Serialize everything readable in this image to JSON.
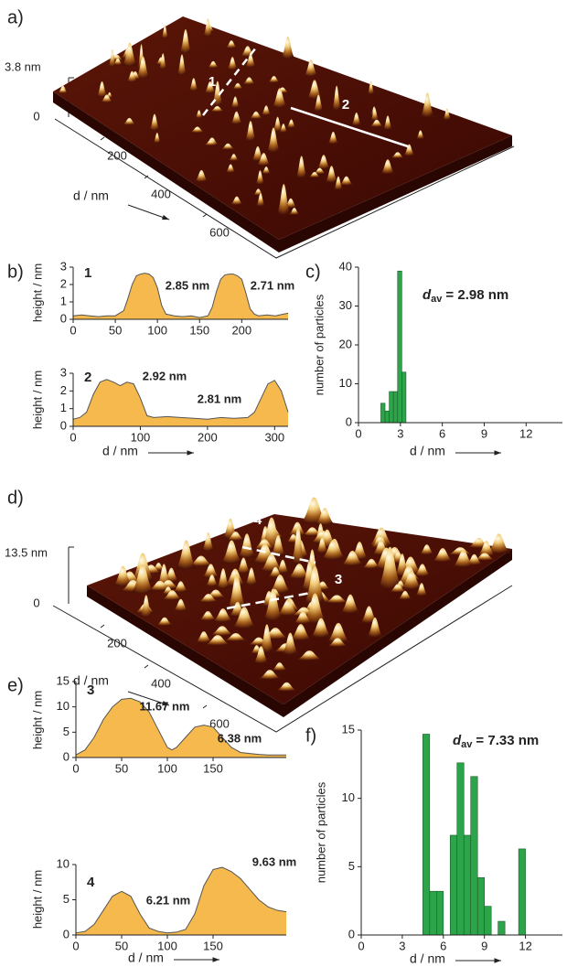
{
  "images": [
    {
      "panel": "a)",
      "zlabel": "3.8 nm",
      "ticks": [
        0,
        200,
        400,
        600
      ],
      "xlabel": "d / nm",
      "lines": [
        "1",
        "2"
      ]
    },
    {
      "panel": "d)",
      "zlabel": "13.5 nm",
      "ticks": [
        0,
        200,
        400,
        600
      ],
      "xlabel": "d / nm",
      "lines": [
        "4",
        "3"
      ]
    }
  ],
  "chart_data": [
    {
      "type": "area",
      "panel": "b)",
      "label": "1",
      "annotations": [
        "2.85 nm",
        "2.71 nm"
      ],
      "ylabel": "height / nm",
      "color": "#f5b94e",
      "x": [
        0,
        10,
        20,
        30,
        40,
        50,
        60,
        65,
        70,
        75,
        80,
        85,
        90,
        95,
        100,
        105,
        110,
        120,
        130,
        140,
        150,
        160,
        165,
        170,
        175,
        180,
        185,
        190,
        195,
        200,
        205,
        210,
        215,
        220,
        230,
        240,
        250,
        255
      ],
      "values": [
        0.2,
        0.25,
        0.2,
        0.15,
        0.2,
        0.2,
        0.5,
        1.2,
        2.0,
        2.5,
        2.6,
        2.65,
        2.6,
        2.4,
        1.8,
        0.8,
        0.3,
        0.2,
        0.15,
        0.2,
        0.1,
        0.2,
        0.7,
        1.6,
        2.3,
        2.55,
        2.6,
        2.6,
        2.5,
        2.3,
        1.5,
        0.6,
        0.3,
        0.2,
        0.25,
        0.2,
        0.3,
        0.35
      ],
      "xlim": [
        0,
        255
      ],
      "xticks": [
        0,
        50,
        100,
        150,
        200
      ],
      "ylim": [
        0,
        3
      ],
      "yticks": [
        0,
        1,
        2,
        3
      ]
    },
    {
      "type": "area",
      "label": "2",
      "annotations": [
        "2.92 nm",
        "2.81 nm"
      ],
      "ylabel": "height / nm",
      "xlabel": "d / nm",
      "color": "#f5b94e",
      "x": [
        0,
        10,
        20,
        30,
        40,
        50,
        60,
        70,
        80,
        90,
        100,
        110,
        120,
        140,
        160,
        180,
        200,
        220,
        240,
        260,
        270,
        280,
        290,
        300,
        310,
        320
      ],
      "values": [
        0.4,
        0.5,
        0.8,
        1.8,
        2.5,
        2.65,
        2.5,
        2.3,
        2.5,
        2.4,
        1.6,
        0.6,
        0.5,
        0.55,
        0.5,
        0.45,
        0.4,
        0.5,
        0.45,
        0.5,
        0.8,
        1.6,
        2.4,
        2.6,
        2.0,
        0.8
      ],
      "xlim": [
        0,
        320
      ],
      "xticks": [
        0,
        100,
        200,
        300
      ],
      "ylim": [
        0,
        3
      ],
      "yticks": [
        0,
        1,
        2,
        3
      ]
    },
    {
      "type": "histogram",
      "panel": "c)",
      "annotation": {
        "symbol": "d",
        "subscript": "av",
        "text": "= 2.98 nm"
      },
      "ylabel": "number of particles",
      "xlabel": "d / nm",
      "color": "#2ca54a",
      "bins": [
        1.6,
        1.9,
        2.2,
        2.5,
        2.8,
        3.1,
        3.4
      ],
      "values": [
        5,
        3,
        8,
        8,
        39,
        13
      ],
      "xlim": [
        0,
        14.6
      ],
      "xticks": [
        0,
        3,
        6,
        9,
        12
      ],
      "ylim": [
        0,
        40
      ],
      "yticks": [
        0,
        10,
        20,
        30,
        40
      ]
    },
    {
      "type": "area",
      "panel": "e)",
      "label": "3",
      "annotations": [
        "11.67 nm",
        "6.38 nm"
      ],
      "ylabel": "height / nm",
      "color": "#f5b94e",
      "x": [
        0,
        10,
        20,
        30,
        40,
        50,
        60,
        70,
        80,
        90,
        100,
        105,
        110,
        120,
        130,
        140,
        150,
        160,
        170,
        180,
        190,
        200,
        210,
        220,
        230
      ],
      "values": [
        0.5,
        1.5,
        4,
        7.5,
        10,
        11.5,
        11.7,
        11,
        9,
        5.5,
        2,
        1.5,
        2,
        4,
        6,
        6.4,
        6,
        4,
        2,
        1,
        0.8,
        0.6,
        0.5,
        0.5,
        0.5
      ],
      "xlim": [
        0,
        230
      ],
      "xticks": [
        0,
        50,
        100,
        150
      ],
      "ylim": [
        0,
        15
      ],
      "yticks": [
        0,
        5,
        10,
        15
      ]
    },
    {
      "type": "area",
      "label": "4",
      "annotations": [
        "6.21 nm",
        "9.63 nm"
      ],
      "ylabel": "height / nm",
      "xlabel": "d / nm",
      "color": "#f5b94e",
      "x": [
        0,
        10,
        20,
        30,
        40,
        50,
        60,
        70,
        80,
        90,
        100,
        110,
        120,
        130,
        140,
        150,
        160,
        170,
        180,
        190,
        200,
        210,
        220,
        230
      ],
      "values": [
        0.3,
        0.5,
        1.5,
        3.5,
        5.5,
        6.2,
        5.5,
        3,
        1,
        0.5,
        0.3,
        0.4,
        0.8,
        3,
        7,
        9.3,
        9.6,
        9,
        8,
        6.5,
        5,
        4,
        3.5,
        3.3
      ],
      "xlim": [
        0,
        230
      ],
      "xticks": [
        0,
        50,
        100,
        150
      ],
      "ylim": [
        0,
        10
      ],
      "yticks": [
        0,
        5,
        10
      ]
    },
    {
      "type": "histogram",
      "panel": "f)",
      "annotation": {
        "symbol": "d",
        "subscript": "av",
        "text": "= 7.33 nm"
      },
      "ylabel": "number of particles",
      "xlabel": "d / nm",
      "color": "#2ca54a",
      "bins": [
        4.5,
        5.0,
        5.5,
        6.0,
        6.5,
        7.0,
        7.5,
        8.0,
        8.5,
        9.0,
        9.5,
        10.0,
        10.5,
        11.0,
        11.5,
        12.0
      ],
      "values": [
        14.7,
        3.2,
        3.2,
        0,
        7.3,
        12.6,
        7.3,
        11.6,
        4.2,
        2.1,
        0,
        1,
        0,
        0,
        6.3
      ],
      "xlim": [
        0,
        14.7
      ],
      "xticks": [
        0,
        3,
        6,
        9,
        12
      ],
      "ylim": [
        0,
        15
      ],
      "yticks": [
        0,
        5,
        10,
        15
      ]
    }
  ]
}
